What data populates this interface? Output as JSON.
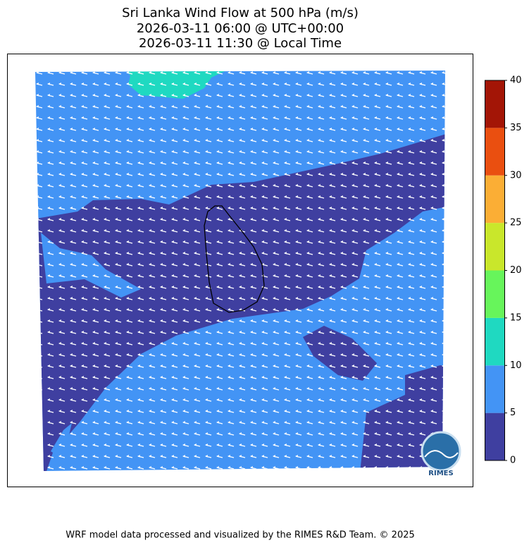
{
  "title_lines": [
    "Sri Lanka Wind Flow at 500 hPa (m/s)",
    "2026-03-11 06:00 @ UTC+00:00",
    "2026-03-11 11:30 @ Local Time"
  ],
  "colorbar": {
    "levels": [
      0,
      5,
      10,
      15,
      20,
      25,
      30,
      35,
      40
    ],
    "colors": [
      "#3f3fa0",
      "#4394f5",
      "#1fd9c1",
      "#67f55b",
      "#c9e72b",
      "#fbae35",
      "#ea4f10",
      "#a31506"
    ]
  },
  "logo_text": "RIMES",
  "footer": "WRF model data processed and visualized by the RIMES R&D Team. © 2025"
}
